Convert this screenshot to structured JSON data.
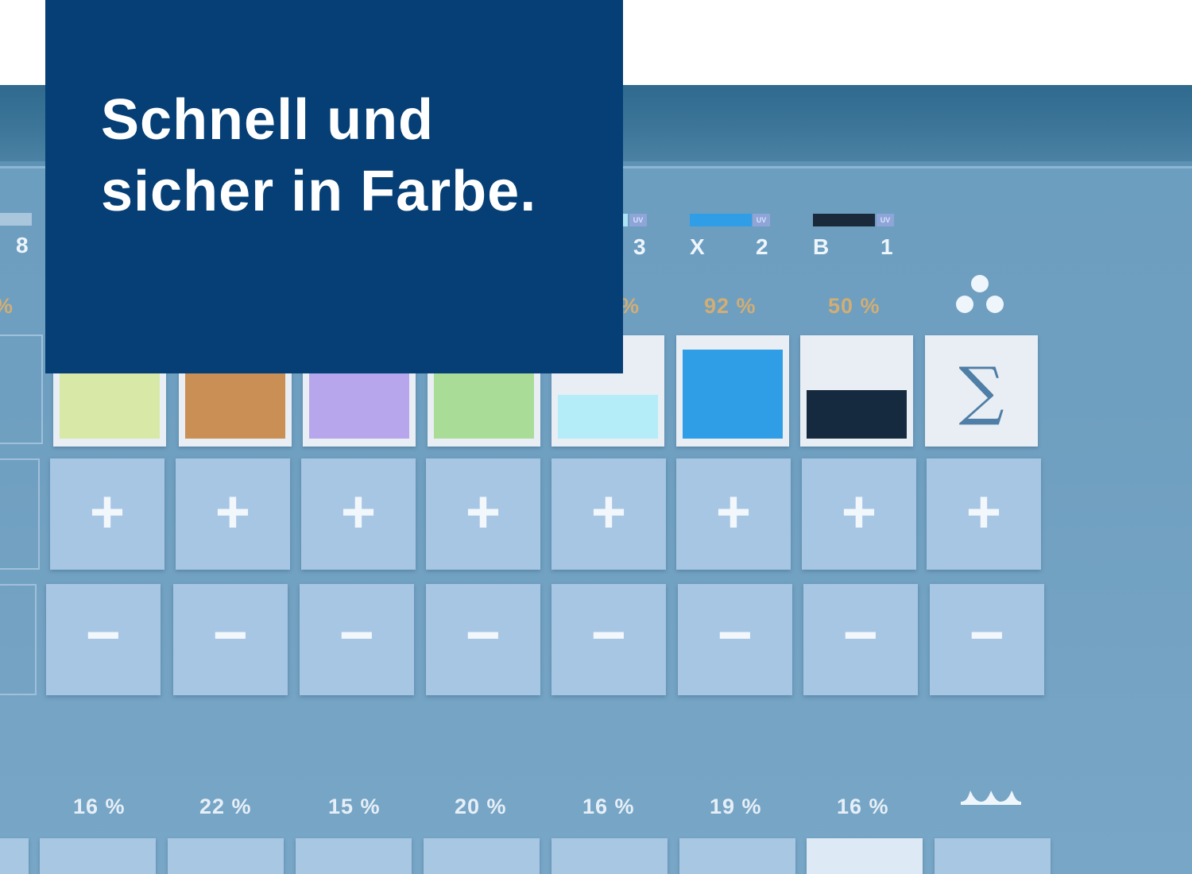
{
  "headline": {
    "line1": "Schnell und",
    "line2": "sicher in Farbe."
  },
  "ink_units": [
    {
      "name": "8",
      "number": "",
      "uv_label": "",
      "bar_color": "#a9c6dd"
    },
    {
      "name": "",
      "number": "3",
      "uv_label": "UV",
      "bar_color": "#aee3f5"
    },
    {
      "name": "X",
      "number": "2",
      "uv_label": "UV",
      "bar_color": "#2f9ee6"
    },
    {
      "name": "B",
      "number": "1",
      "uv_label": "UV",
      "bar_color": "#1b2a3a"
    }
  ],
  "top_percentages": [
    "%",
    "%",
    "92 %",
    "50 %"
  ],
  "swatches": [
    {
      "color": "#d8e8a6",
      "fill_level": 0.92
    },
    {
      "color": "#c98f55",
      "fill_level": 0.92
    },
    {
      "color": "#b7a6ec",
      "fill_level": 0.92
    },
    {
      "color": "#a9dd97",
      "fill_level": 0.92
    },
    {
      "color": "#b4ecf7",
      "fill_level": 0.45
    },
    {
      "color": "#2f9ee6",
      "fill_level": 0.92
    },
    {
      "color": "#152a3e",
      "fill_level": 0.5
    }
  ],
  "sigma_symbol": "∑",
  "plus_symbol": "+",
  "minus_symbol": "−",
  "bottom_percentages": [
    "16 %",
    "22 %",
    "15 %",
    "20 %",
    "16 %",
    "19 %",
    "16 %"
  ],
  "icons": {
    "ink_icon": "three-dots-icon",
    "dampening_icon": "water-wave-icon"
  },
  "colors": {
    "panel": "#053f75",
    "screen": "#6f9fc0",
    "button": "#a7c6e3",
    "percent_top": "#d2ad74"
  }
}
